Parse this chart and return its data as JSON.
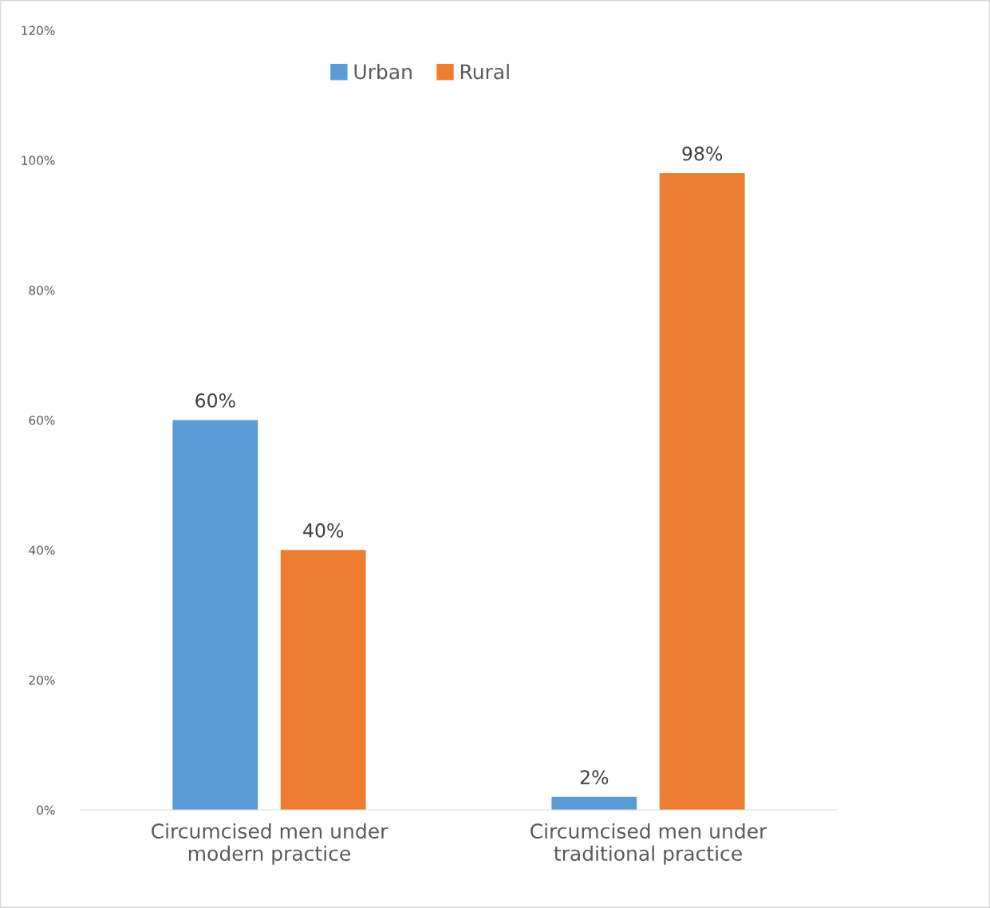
{
  "chart_data": {
    "type": "bar",
    "categories": [
      "Circumcised men under\nmodern practice",
      "Circumcised men under\ntraditional practice"
    ],
    "series": [
      {
        "name": "Urban",
        "color": "#5b9bd5",
        "values": [
          60,
          2
        ],
        "value_labels": [
          "60%",
          "2%"
        ]
      },
      {
        "name": "Rural",
        "color": "#ed7d31",
        "values": [
          40,
          98
        ],
        "value_labels": [
          "40%",
          "98%"
        ]
      }
    ],
    "ylim": [
      0,
      120
    ],
    "yticks": [
      {
        "value": 0,
        "label": "0%"
      },
      {
        "value": 20,
        "label": "20%"
      },
      {
        "value": 40,
        "label": "40%"
      },
      {
        "value": 60,
        "label": "60%"
      },
      {
        "value": 80,
        "label": "80%"
      },
      {
        "value": 100,
        "label": "100%"
      },
      {
        "value": 120,
        "label": "120%"
      }
    ],
    "grid": false,
    "legend": "top"
  }
}
